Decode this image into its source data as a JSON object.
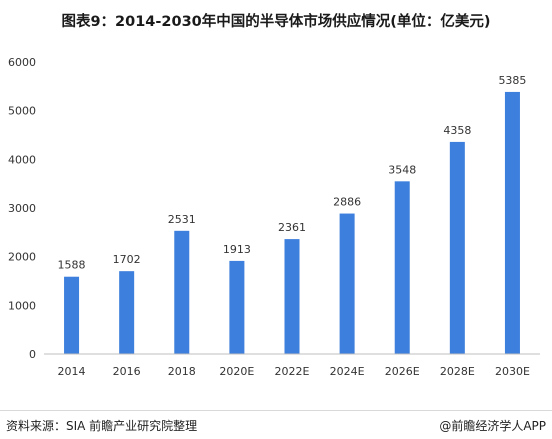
{
  "title": "图表9：2014-2030年中国的半导体市场供应情况(单位：亿美元)",
  "source": "资料来源：SIA 前瞻产业研究院整理",
  "brand": "@前瞻经济学人APP",
  "colors": {
    "bar": "#3d7fdd",
    "axis": "#bfbfbf",
    "text": "#333333"
  },
  "chart_data": {
    "type": "bar",
    "categories": [
      "2014",
      "2016",
      "2018",
      "2020E",
      "2022E",
      "2024E",
      "2026E",
      "2028E",
      "2030E"
    ],
    "values": [
      1588,
      1702,
      2531,
      1913,
      2361,
      2886,
      3548,
      4358,
      5385
    ],
    "ylim": [
      0,
      6000
    ],
    "yticks": [
      0,
      1000,
      2000,
      3000,
      4000,
      5000,
      6000
    ],
    "grid": false,
    "legend": "none",
    "data_labels": true
  }
}
